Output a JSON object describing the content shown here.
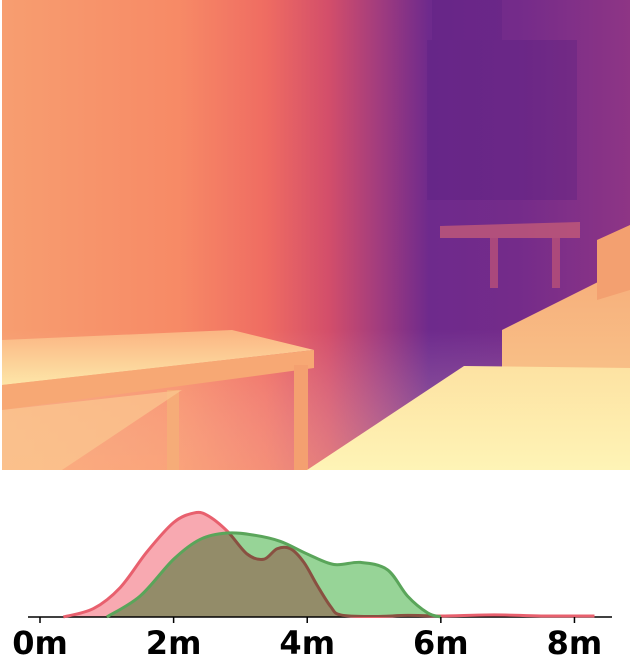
{
  "depth_map": {
    "colormap": "magma",
    "colors": {
      "near": "#fcf8b8",
      "mid": "#f28a68",
      "far": "#6e2a8c"
    }
  },
  "chart_data": {
    "type": "area",
    "x_unit": "m",
    "xlim": [
      0,
      8.3
    ],
    "ylim": [
      0,
      1.0
    ],
    "ticks": [
      {
        "value": 0,
        "label": "0m"
      },
      {
        "value": 2,
        "label": "2m"
      },
      {
        "value": 4,
        "label": "4m"
      },
      {
        "value": 6,
        "label": "6m"
      },
      {
        "value": 8,
        "label": "8m"
      }
    ],
    "series": [
      {
        "color": "#e8606e",
        "fill": "#f7a0a8",
        "x": [
          0.35,
          0.8,
          1.2,
          1.6,
          2.0,
          2.3,
          2.5,
          2.8,
          3.1,
          3.35,
          3.55,
          3.75,
          3.95,
          4.15,
          4.35,
          4.5,
          5.0,
          5.5,
          6.0,
          6.8,
          7.5,
          8.3
        ],
        "y": [
          0.0,
          0.08,
          0.28,
          0.62,
          0.9,
          0.99,
          0.97,
          0.82,
          0.6,
          0.55,
          0.65,
          0.65,
          0.52,
          0.3,
          0.1,
          0.02,
          0.005,
          0.015,
          0.01,
          0.02,
          0.01,
          0.01
        ]
      },
      {
        "color": "#5aa55a",
        "fill": "#8ccf8c",
        "x": [
          1.0,
          1.5,
          2.0,
          2.4,
          2.8,
          3.2,
          3.6,
          4.0,
          4.4,
          4.8,
          5.2,
          5.5,
          5.8,
          6.0
        ],
        "y": [
          0.0,
          0.2,
          0.55,
          0.74,
          0.8,
          0.78,
          0.72,
          0.6,
          0.5,
          0.52,
          0.45,
          0.2,
          0.04,
          0.0
        ]
      }
    ]
  }
}
